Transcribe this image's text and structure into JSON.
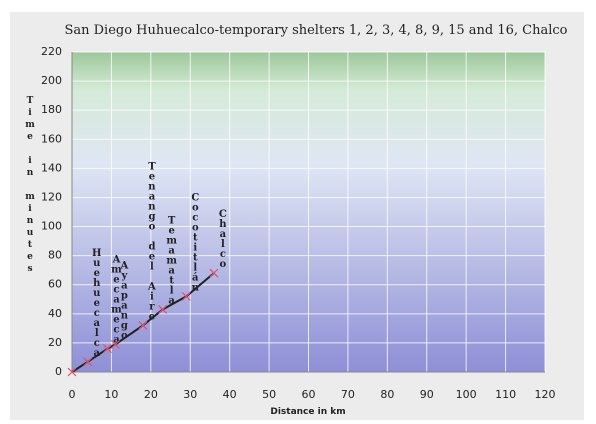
{
  "chart_data": {
    "type": "line",
    "title": "San Diego Huhuecalco-temporary shelters 1, 2, 3, 4, 8, 9, 15 and 16, Chalco",
    "x_label": "Distance in km",
    "y_label": "Time in minutes",
    "x": [
      0,
      4,
      9,
      11,
      18,
      23,
      29,
      36
    ],
    "series": [
      {
        "name": "Time",
        "color": "#222222",
        "marker_color": "#e0506a",
        "values": [
          0,
          7,
          16,
          19,
          32,
          43,
          52,
          68
        ]
      }
    ],
    "point_labels": [
      null,
      "Huehuecalca",
      "Amecameca",
      "Ayapango",
      "Tenango del Aire",
      "Temamatla",
      "Cocotitlán",
      "Chalco"
    ],
    "xlim": [
      0,
      120
    ],
    "xticks": [
      0,
      10,
      20,
      30,
      40,
      50,
      60,
      70,
      80,
      90,
      100,
      110,
      120
    ],
    "ylim": [
      0,
      220
    ],
    "yticks": [
      0,
      20,
      40,
      60,
      80,
      100,
      120,
      140,
      160,
      180,
      200,
      220
    ],
    "grid": true
  }
}
